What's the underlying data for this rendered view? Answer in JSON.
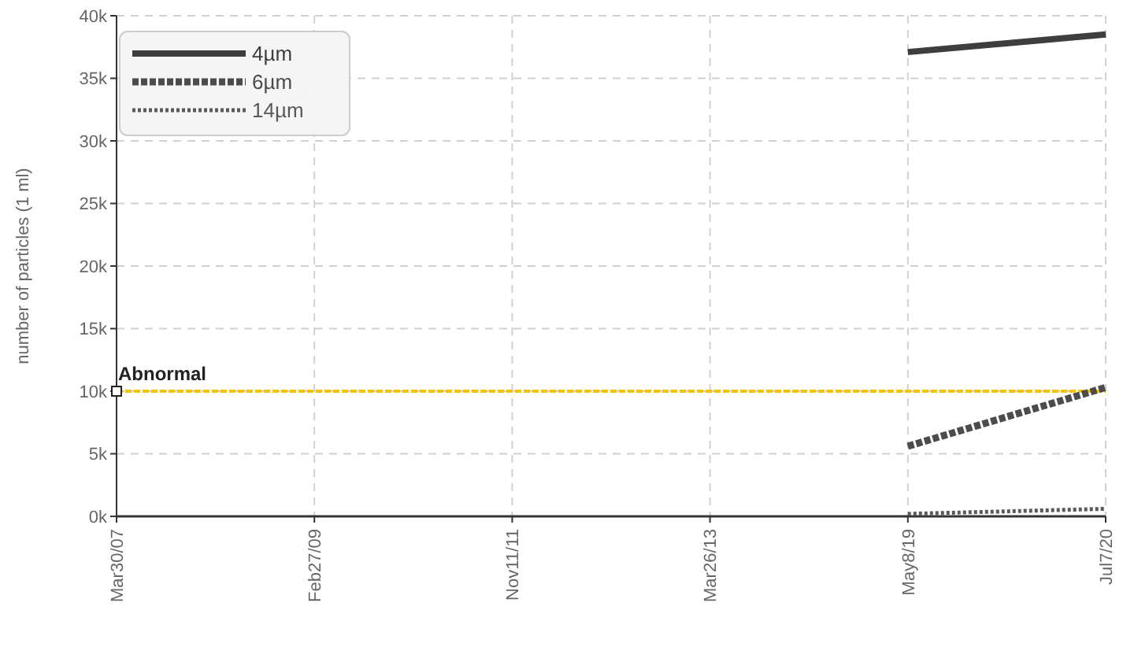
{
  "chart_data": {
    "type": "line",
    "ylabel": "number of particles (1 ml)",
    "categories": [
      "Mar30/07",
      "Feb27/09",
      "Nov11/11",
      "Mar26/13",
      "May8/19",
      "Jul7/20"
    ],
    "series": [
      {
        "name": "4µm",
        "color": "#3e3e3e",
        "line_style": "solid",
        "values": [
          null,
          null,
          null,
          null,
          37100,
          38500
        ]
      },
      {
        "name": "6µm",
        "color": "#4c4c4c",
        "line_style": "dashed",
        "values": [
          null,
          null,
          null,
          null,
          5600,
          10300
        ]
      },
      {
        "name": "14µm",
        "color": "#5a5a5a",
        "line_style": "dotted",
        "values": [
          null,
          null,
          null,
          null,
          200,
          600
        ]
      }
    ],
    "ylim": [
      0,
      40000
    ],
    "yticks": [
      {
        "value": 0,
        "label": "0k"
      },
      {
        "value": 5000,
        "label": "5k"
      },
      {
        "value": 10000,
        "label": "10k"
      },
      {
        "value": 15000,
        "label": "15k"
      },
      {
        "value": 20000,
        "label": "20k"
      },
      {
        "value": 25000,
        "label": "25k"
      },
      {
        "value": 30000,
        "label": "30k"
      },
      {
        "value": 35000,
        "label": "35k"
      },
      {
        "value": 40000,
        "label": "40k"
      }
    ],
    "ref_lines": [
      {
        "axis": "y",
        "value": 10000,
        "label": "Abnormal",
        "color": "#f5c400",
        "line_style": "dashed"
      }
    ],
    "grid": true,
    "legend": "top left",
    "marker": "none"
  }
}
